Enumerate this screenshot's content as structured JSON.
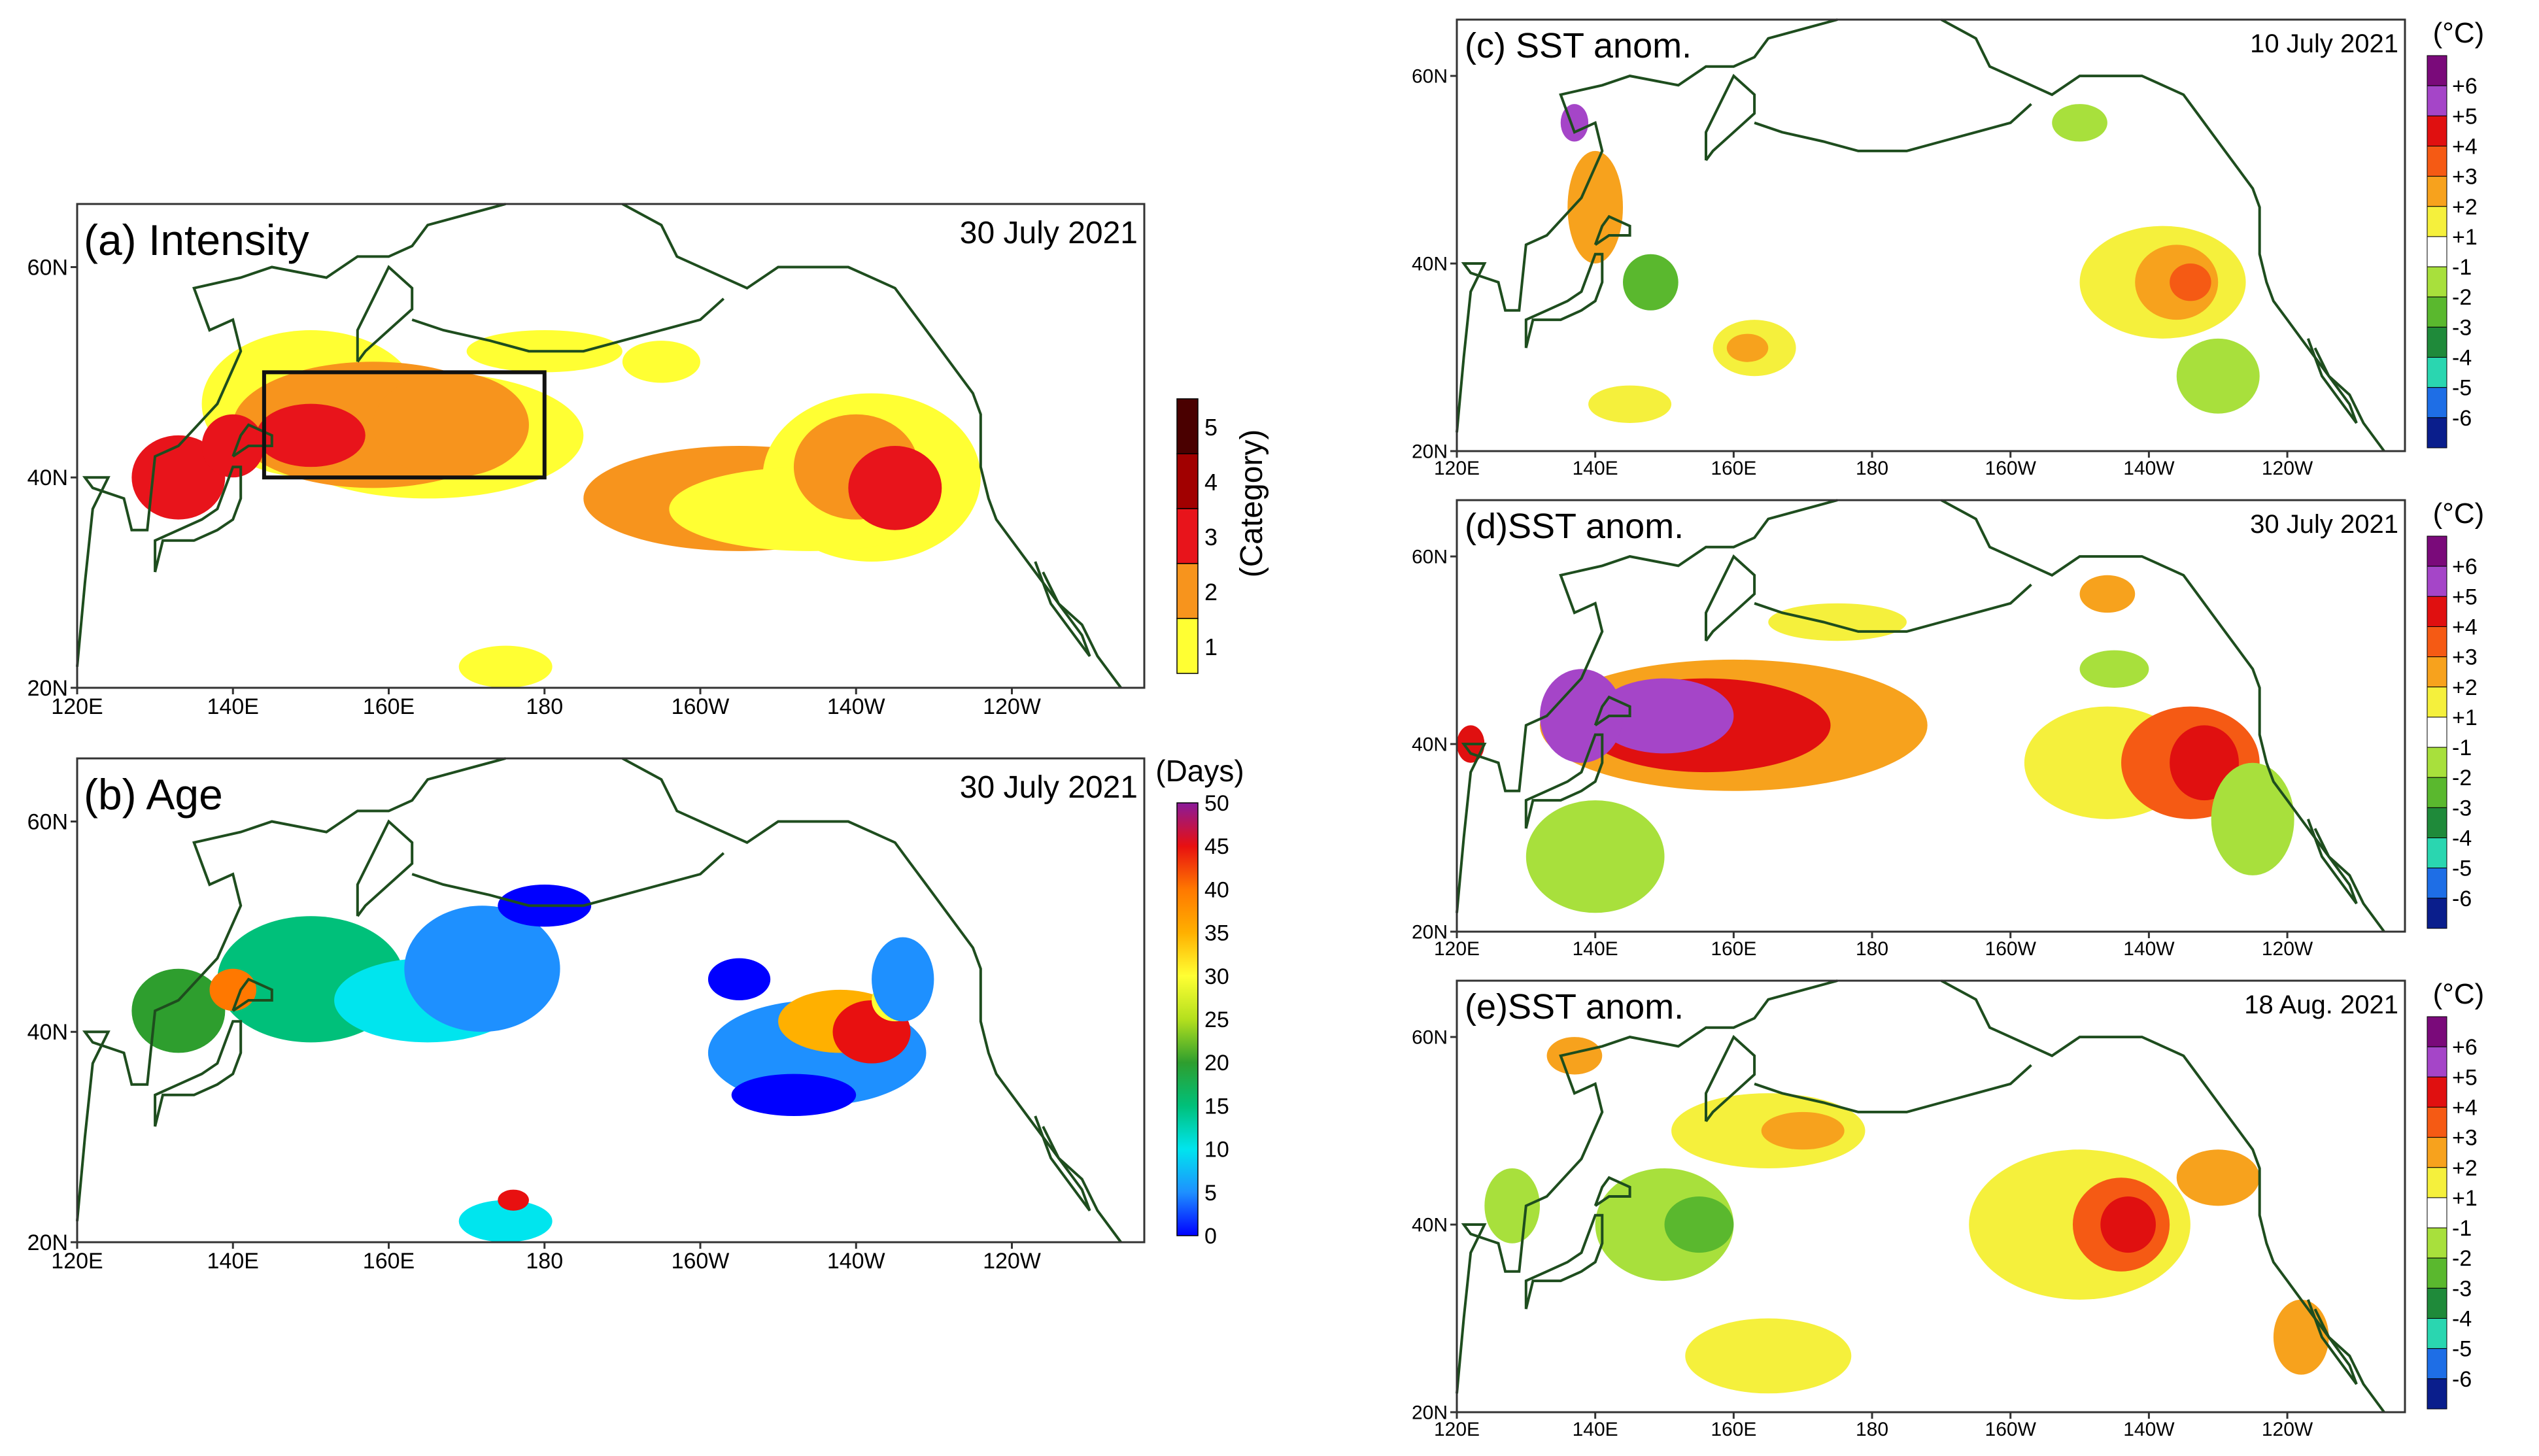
{
  "panels": {
    "a": {
      "title": "(a) Intensity",
      "date": "30 July 2021",
      "colorbar": {
        "label": "(Category)",
        "ticks": [
          "5",
          "4",
          "3",
          "2",
          "1"
        ],
        "colors": [
          "#4a0000",
          "#a10000",
          "#e8141b",
          "#f7941d",
          "#ffff33"
        ]
      }
    },
    "b": {
      "title": "(b) Age",
      "date": "30 July 2021",
      "colorbar": {
        "label": "(Days)",
        "ticks": [
          "50",
          "45",
          "40",
          "35",
          "30",
          "25",
          "20",
          "15",
          "10",
          "5",
          "0"
        ],
        "colors": [
          "#0000ff",
          "#1e90ff",
          "#00e5ee",
          "#00c07a",
          "#2e9e2e",
          "#b4e01e",
          "#ffff33",
          "#ffb000",
          "#ff7800",
          "#e81010",
          "#8a1a9a"
        ]
      }
    },
    "c": {
      "title": "(c) SST anom.",
      "date": "10 July 2021"
    },
    "d": {
      "title": "(d)SST anom.",
      "date": "30 July 2021"
    },
    "e": {
      "title": "(e)SST anom.",
      "date": "18 Aug. 2021"
    }
  },
  "sst_colorbar": {
    "label": "(°C)",
    "ticks": [
      "+6",
      "+5",
      "+4",
      "+3",
      "+2",
      "+1",
      "-1",
      "-2",
      "-3",
      "-4",
      "-5",
      "-6"
    ],
    "colors": [
      "#7a0a7a",
      "#a545c8",
      "#e01010",
      "#f55a14",
      "#f7a21d",
      "#f5f03c",
      "#ffffff",
      "#a8e03c",
      "#5ab82e",
      "#1f8a3a",
      "#2ad6b0",
      "#1e6ee6",
      "#0a1e8c"
    ]
  },
  "left_axes": {
    "x_ticks": [
      "120E",
      "140E",
      "160E",
      "180",
      "160W",
      "140W",
      "120W"
    ],
    "y_ticks": [
      "60N",
      "40N",
      "20N"
    ]
  },
  "right_axes": {
    "x_ticks": [
      "120E",
      "140E",
      "160E",
      "180",
      "160W",
      "140W",
      "120W"
    ],
    "y_ticks": [
      "60N",
      "40N",
      "20N"
    ]
  },
  "colors": {
    "coast": "#1e4d1e",
    "frame": "#333333",
    "box": "#111111"
  }
}
